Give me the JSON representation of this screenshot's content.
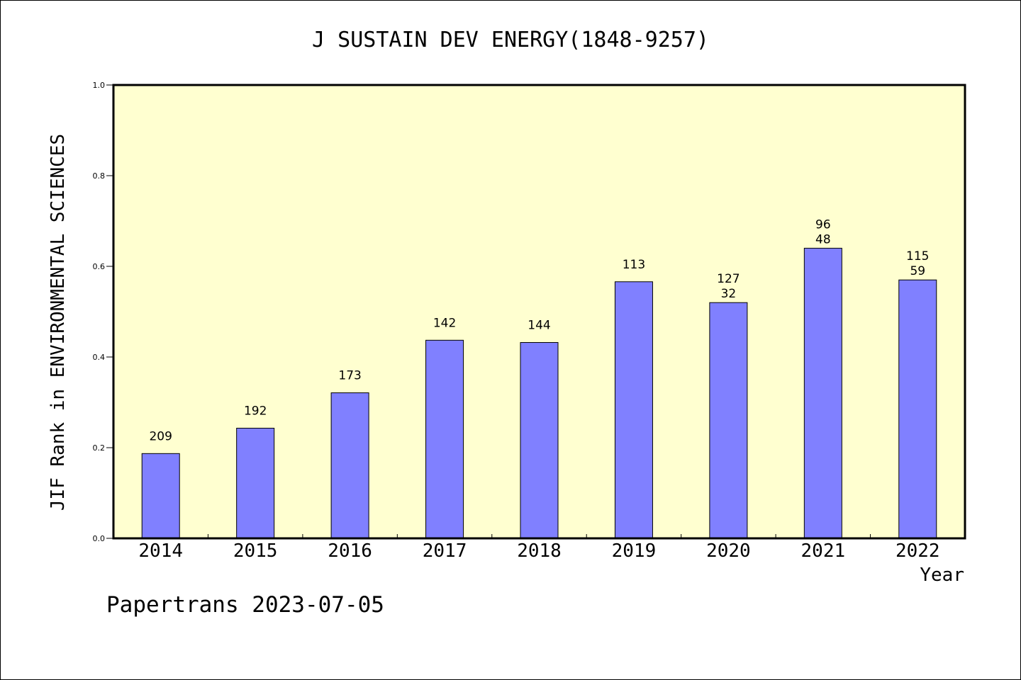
{
  "chart_data": {
    "type": "bar",
    "title": "J SUSTAIN DEV ENERGY(1848-9257)",
    "xlabel": "Year",
    "ylabel": "JIF Rank in ENVIRONMENTAL SCIENCES",
    "ylim": [
      0,
      1.0
    ],
    "yticks": [
      "0.0",
      "0.2",
      "0.4",
      "0.6",
      "0.8",
      "1.0"
    ],
    "categories": [
      "2014",
      "2015",
      "2016",
      "2017",
      "2018",
      "2019",
      "2020",
      "2021",
      "2022"
    ],
    "values": [
      0.187,
      0.243,
      0.321,
      0.437,
      0.432,
      0.566,
      0.52,
      0.64,
      0.57
    ],
    "labels_top": [
      "209",
      "192",
      "173",
      "142",
      "144",
      "113",
      "127",
      "96",
      "115"
    ],
    "labels_bottom": [
      "",
      "",
      "",
      "",
      "",
      "",
      "32",
      "48",
      "59"
    ],
    "bar_color": "#8080ff",
    "plot_background": "#ffffd0",
    "grid": false,
    "footer": "Papertrans 2023-07-05"
  }
}
